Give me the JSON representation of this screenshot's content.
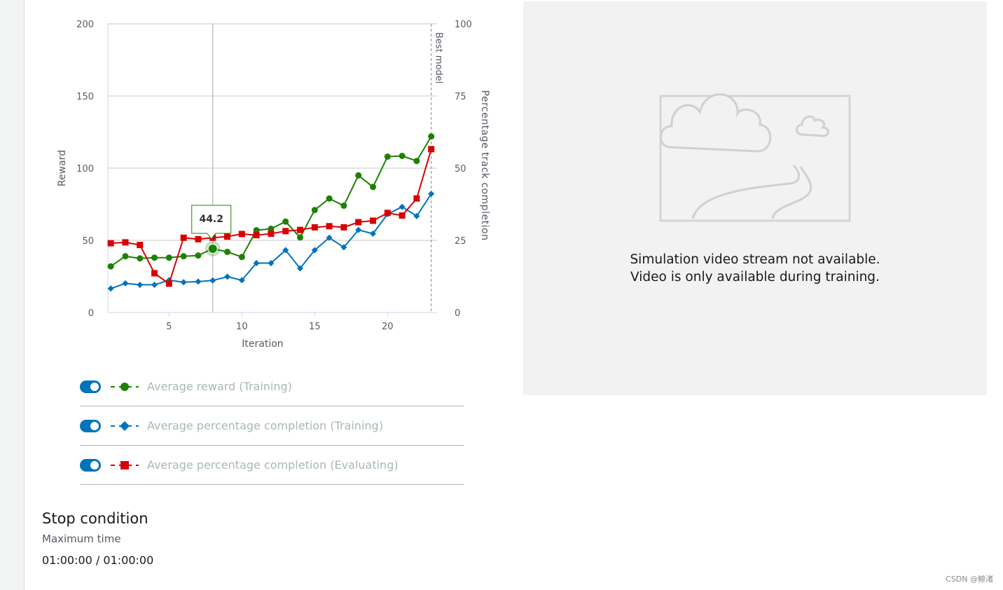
{
  "chart_data": {
    "type": "line",
    "xlabel": "Iteration",
    "ylabel": "Reward",
    "y2label": "Percentage track completion",
    "xlim": [
      0.8,
      23.4
    ],
    "ylim": [
      0,
      200
    ],
    "y2lim": [
      0,
      100
    ],
    "x_ticks": [
      5,
      10,
      15,
      20
    ],
    "y_ticks": [
      0,
      50,
      100,
      150,
      200
    ],
    "y2_ticks": [
      0,
      25,
      50,
      75,
      100
    ],
    "grid": true,
    "best_model": {
      "label": "Best model",
      "x": 23
    },
    "crosshair_x": 8,
    "tooltip": {
      "x": 8,
      "value": "44.2",
      "series": "Average reward (Training)"
    },
    "series": [
      {
        "name": "Average reward (Training)",
        "axis": "left",
        "color": "#1d8102",
        "marker": "circle",
        "x": [
          1,
          2,
          3,
          4,
          5,
          6,
          7,
          8,
          9,
          10,
          11,
          12,
          13,
          14,
          15,
          16,
          17,
          18,
          19,
          20,
          21,
          22,
          23
        ],
        "values": [
          32,
          39,
          37.5,
          38,
          38,
          39,
          39.5,
          44.2,
          42,
          38.5,
          57,
          58,
          63,
          52,
          71,
          79,
          74,
          95,
          87,
          108,
          108.5,
          105,
          122
        ]
      },
      {
        "name": "Average percentage completion (Training)",
        "axis": "right",
        "color": "#0073bb",
        "marker": "diamond",
        "x": [
          1,
          2,
          3,
          4,
          5,
          6,
          7,
          8,
          9,
          10,
          11,
          12,
          13,
          14,
          15,
          16,
          17,
          18,
          19,
          20,
          21,
          22,
          23
        ],
        "values": [
          8.3,
          10.1,
          9.6,
          9.6,
          11.2,
          10.5,
          10.7,
          11.1,
          12.4,
          11.2,
          17.1,
          17.1,
          21.6,
          15.3,
          21.6,
          25.9,
          22.6,
          28.6,
          27.3,
          34.1,
          36.6,
          33.4,
          41.1
        ]
      },
      {
        "name": "Average percentage completion (Evaluating)",
        "axis": "right",
        "color": "#d80000",
        "marker": "square",
        "x": [
          1,
          2,
          3,
          4,
          5,
          6,
          7,
          8,
          9,
          10,
          11,
          12,
          13,
          14,
          15,
          16,
          17,
          18,
          19,
          20,
          21,
          22,
          23
        ],
        "values": [
          24,
          24.3,
          23.4,
          13.6,
          10,
          25.9,
          25.4,
          25.9,
          26.3,
          27.2,
          26.8,
          27.3,
          28.2,
          28.6,
          29.5,
          29.9,
          29.5,
          31.3,
          31.8,
          34.5,
          33.6,
          39.5,
          56.6
        ]
      }
    ]
  },
  "legend": {
    "items": [
      {
        "label": "Average reward (Training)",
        "color": "#1d8102",
        "marker": "circle",
        "enabled": true
      },
      {
        "label": "Average percentage completion (Training)",
        "color": "#0073bb",
        "marker": "diamond",
        "enabled": true
      },
      {
        "label": "Average percentage completion (Evaluating)",
        "color": "#d80000",
        "marker": "square",
        "enabled": true
      }
    ]
  },
  "stop_condition": {
    "title": "Stop condition",
    "label": "Maximum time",
    "value": "01:00:00 / 01:00:00"
  },
  "video": {
    "line1": "Simulation video stream not available.",
    "line2": "Video is only available during training."
  },
  "watermark": "CSDN @鲸渚"
}
